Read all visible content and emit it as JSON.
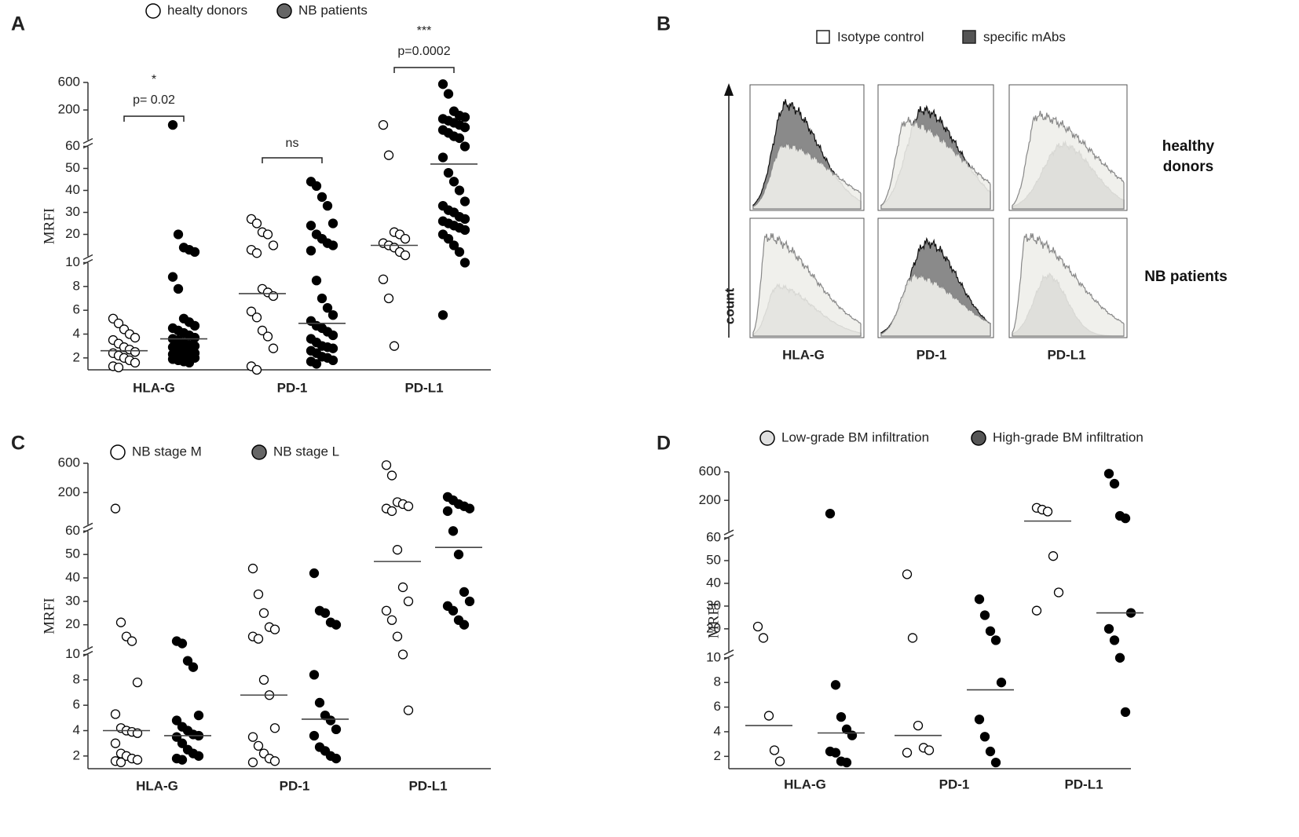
{
  "panels": [
    "A",
    "B",
    "C",
    "D"
  ],
  "chart_data": [
    {
      "type": "dot",
      "ylabel": "MRFI",
      "categories": [
        "HLA-G",
        "PD-1",
        "PD-L1"
      ],
      "ylim": [
        1,
        600
      ],
      "axis_breaks": [
        10,
        60
      ],
      "yticks": [
        2,
        4,
        6,
        8,
        10,
        20,
        30,
        40,
        50,
        60,
        200,
        600
      ],
      "series": [
        {
          "name": "healty donors",
          "color": "#000000",
          "filled": false,
          "legend_color": "#ffffff",
          "values": [
            [
              5.3,
              4.9,
              4.4,
              4.0,
              3.7,
              3.5,
              3.2,
              2.9,
              2.7,
              2.5,
              2.4,
              2.2,
              2.0,
              1.8,
              1.6,
              1.3,
              1.2
            ],
            [
              27,
              25,
              21,
              20,
              15,
              13,
              11.5,
              7.8,
              7.5,
              7.2,
              5.9,
              5.4,
              4.3,
              3.8,
              2.8,
              1.3,
              1.0
            ],
            [
              110,
              56,
              21,
              20,
              18,
              16,
              15,
              14,
              12,
              10.5,
              8.6,
              7,
              3
            ]
          ],
          "medians": [
            2.6,
            7.4,
            15
          ]
        },
        {
          "name": "NB patients",
          "color": "#000000",
          "filled": true,
          "legend_color": "#666666",
          "values": [
            [
              110,
              20,
              14,
              13,
              12,
              8.8,
              7.8,
              5.3,
              5,
              4.7,
              4.5,
              4.3,
              4.1,
              3.9,
              3.7,
              3.6,
              3.5,
              3.3,
              3.1,
              3,
              2.9,
              2.8,
              2.7,
              2.5,
              2.4,
              2.3,
              2.2,
              2.1,
              2,
              2,
              1.9,
              1.8,
              1.7,
              1.6
            ],
            [
              44,
              42,
              37,
              33,
              25,
              24,
              20,
              18,
              16,
              15,
              12.6,
              8.5,
              7,
              6.2,
              5.6,
              5.1,
              4.7,
              4.5,
              4.2,
              3.9,
              3.6,
              3.3,
              3,
              2.9,
              2.8,
              2.6,
              2.4,
              2.1,
              2,
              1.8,
              1.7,
              1.5
            ],
            [
              560,
              380,
              190,
              160,
              150,
              140,
              130,
              120,
              110,
              100,
              90,
              80,
              70,
              65,
              60,
              55,
              48,
              44,
              40,
              35,
              33,
              31,
              30,
              28,
              27,
              26,
              25,
              24,
              23,
              22,
              20,
              18,
              15,
              12,
              10,
              5.6
            ]
          ],
          "medians": [
            3.6,
            4.9,
            52
          ]
        }
      ],
      "comparisons": [
        {
          "stars": "*",
          "p": "p= 0.02"
        },
        {
          "stars": "ns"
        },
        {
          "stars": "***",
          "p": "p=0.0002"
        }
      ]
    },
    {
      "type": "dot",
      "ylabel": "MRFI",
      "categories": [
        "HLA-G",
        "PD-1",
        "PD-L1"
      ],
      "ylim": [
        1,
        600
      ],
      "axis_breaks": [
        10,
        60
      ],
      "yticks": [
        2,
        4,
        6,
        8,
        10,
        20,
        30,
        40,
        50,
        60,
        200,
        600
      ],
      "series": [
        {
          "name": "NB stage M",
          "color": "#000000",
          "filled": false,
          "legend_color": "#ffffff",
          "values": [
            [
              110,
              21,
              15,
              13,
              7.8,
              5.3,
              4.2,
              4,
              3.9,
              3.8,
              3,
              2.2,
              2,
              1.8,
              1.7,
              1.6,
              1.5
            ],
            [
              44,
              33,
              25,
              19,
              18,
              15,
              14,
              8,
              6.8,
              4.2,
              3.5,
              2.8,
              2.2,
              1.8,
              1.6,
              1.5
            ],
            [
              560,
              380,
              140,
              130,
              120,
              110,
              100,
              52,
              36,
              30,
              26,
              22,
              15,
              10,
              5.6
            ]
          ],
          "medians": [
            4.0,
            6.8,
            47
          ]
        },
        {
          "name": "NB stage L",
          "color": "#000000",
          "filled": true,
          "legend_color": "#666666",
          "values": [
            [
              13,
              12,
              9.5,
              9,
              5.2,
              4.8,
              4.3,
              4,
              3.7,
              3.6,
              3.5,
              3,
              2.5,
              2.2,
              2,
              1.8,
              1.7
            ],
            [
              42,
              26,
              25,
              21,
              20,
              8.4,
              6.2,
              5.2,
              4.8,
              4.1,
              3.6,
              2.7,
              2.4,
              2.0,
              1.8
            ],
            [
              170,
              150,
              130,
              120,
              110,
              100,
              60,
              50,
              34,
              30,
              28,
              26,
              22,
              20
            ]
          ],
          "medians": [
            3.6,
            4.9,
            53
          ]
        }
      ]
    },
    {
      "type": "dot",
      "ylabel": "MRFI",
      "categories": [
        "HLA-G",
        "PD-1",
        "PD-L1"
      ],
      "ylim": [
        1,
        600
      ],
      "axis_breaks": [
        10,
        60
      ],
      "yticks": [
        2,
        4,
        6,
        8,
        10,
        20,
        30,
        40,
        50,
        60,
        200,
        600
      ],
      "series": [
        {
          "name": "Low-grade BM infiltration",
          "color": "#000000",
          "filled": false,
          "legend_color": "#e0e0e0",
          "values": [
            [
              21,
              16,
              5.3,
              2.5,
              1.6
            ],
            [
              44,
              16,
              4.5,
              2.7,
              2.5,
              2.3
            ],
            [
              150,
              140,
              130,
              52,
              36,
              28
            ]
          ],
          "medians": [
            4.5,
            3.7,
            90
          ]
        },
        {
          "name": "High-grade BM infiltration",
          "color": "#000000",
          "filled": true,
          "legend_color": "#555555",
          "values": [
            [
              120,
              7.8,
              5.2,
              4.2,
              3.7,
              2.4,
              2.3,
              1.6,
              1.5
            ],
            [
              33,
              26,
              19,
              15,
              8,
              5,
              3.6,
              2.4,
              1.5
            ],
            [
              560,
              380,
              110,
              100,
              27,
              20,
              15,
              10,
              5.6
            ]
          ],
          "medians": [
            3.9,
            7.4,
            27
          ]
        }
      ]
    }
  ],
  "flow_panel": {
    "legend": [
      "Isotype control",
      "specific mAbs"
    ],
    "rows": [
      "healthy donors",
      "NB patients"
    ],
    "y_label": "count",
    "columns": [
      "HLA-G",
      "PD-1",
      "PD-L1"
    ]
  }
}
